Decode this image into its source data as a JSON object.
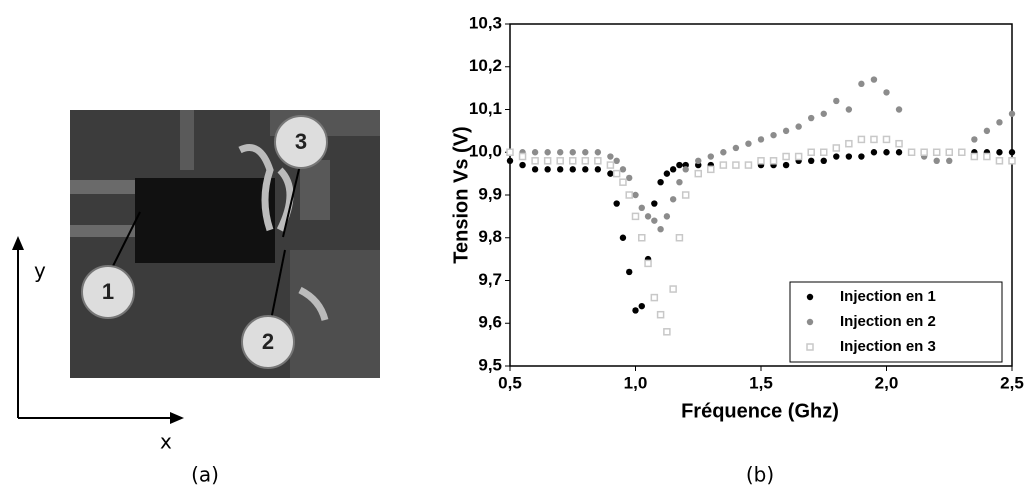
{
  "panel_a": {
    "callouts": [
      "1",
      "2",
      "3"
    ],
    "axis_x": "x",
    "axis_y": "y"
  },
  "captions": [
    "(a)",
    "(b)"
  ],
  "chart_data": {
    "type": "scatter",
    "x_label": "Fréquence (Ghz)",
    "y_label": "Tension Vs (V)",
    "x": [
      0.5,
      0.55,
      0.6,
      0.65,
      0.7,
      0.75,
      0.8,
      0.85,
      0.9,
      0.925,
      0.95,
      0.975,
      1.0,
      1.025,
      1.05,
      1.075,
      1.1,
      1.125,
      1.15,
      1.175,
      1.2,
      1.25,
      1.3,
      1.35,
      1.4,
      1.45,
      1.5,
      1.55,
      1.6,
      1.65,
      1.7,
      1.75,
      1.8,
      1.85,
      1.9,
      1.95,
      2.0,
      2.05,
      2.1,
      2.15,
      2.2,
      2.25,
      2.3,
      2.35,
      2.4,
      2.45,
      2.5
    ],
    "series": [
      {
        "name": "Injection en 1",
        "color": "#000000",
        "marker": "circle",
        "values": [
          9.98,
          9.97,
          9.96,
          9.96,
          9.96,
          9.96,
          9.96,
          9.96,
          9.95,
          9.88,
          9.8,
          9.72,
          9.63,
          9.64,
          9.75,
          9.88,
          9.93,
          9.95,
          9.96,
          9.97,
          9.97,
          9.97,
          9.97,
          9.97,
          9.97,
          9.97,
          9.97,
          9.97,
          9.97,
          9.98,
          9.98,
          9.98,
          9.99,
          9.99,
          9.99,
          10.0,
          10.0,
          10.0,
          10.0,
          10.0,
          10.0,
          10.0,
          10.0,
          10.0,
          10.0,
          10.0,
          10.0
        ]
      },
      {
        "name": "Injection en 2",
        "color": "#8c8c8c",
        "marker": "circle",
        "values": [
          10.0,
          10.0,
          10.0,
          10.0,
          10.0,
          10.0,
          10.0,
          10.0,
          9.99,
          9.98,
          9.96,
          9.94,
          9.9,
          9.87,
          9.85,
          9.84,
          9.82,
          9.85,
          9.89,
          9.93,
          9.96,
          9.98,
          9.99,
          10.0,
          10.01,
          10.02,
          10.03,
          10.04,
          10.05,
          10.06,
          10.08,
          10.09,
          10.12,
          10.1,
          10.16,
          10.17,
          10.14,
          10.1,
          10.0,
          9.99,
          9.98,
          9.98,
          10.0,
          10.03,
          10.05,
          10.07,
          10.09
        ]
      },
      {
        "name": "Injection en 3",
        "color": "#c8c8c8",
        "marker": "square",
        "values": [
          10.0,
          9.99,
          9.98,
          9.98,
          9.98,
          9.98,
          9.98,
          9.98,
          9.97,
          9.95,
          9.93,
          9.9,
          9.85,
          9.8,
          9.74,
          9.66,
          9.62,
          9.58,
          9.68,
          9.8,
          9.9,
          9.95,
          9.96,
          9.97,
          9.97,
          9.97,
          9.98,
          9.98,
          9.99,
          9.99,
          10.0,
          10.0,
          10.01,
          10.02,
          10.03,
          10.03,
          10.03,
          10.02,
          10.0,
          10.0,
          10.0,
          10.0,
          10.0,
          9.99,
          9.99,
          9.98,
          9.98
        ]
      }
    ],
    "xlim": [
      0.5,
      2.5
    ],
    "ylim": [
      9.5,
      10.3
    ],
    "xticks": [
      {
        "value": 0.5,
        "label": "0,5"
      },
      {
        "value": 1.0,
        "label": "1,0"
      },
      {
        "value": 1.5,
        "label": "1,5"
      },
      {
        "value": 2.0,
        "label": "2,0"
      },
      {
        "value": 2.5,
        "label": "2,5"
      }
    ],
    "yticks": [
      {
        "value": 9.5,
        "label": "9,5"
      },
      {
        "value": 9.6,
        "label": "9,6"
      },
      {
        "value": 9.7,
        "label": "9,7"
      },
      {
        "value": 9.8,
        "label": "9,8"
      },
      {
        "value": 9.9,
        "label": "9,9"
      },
      {
        "value": 10.0,
        "label": "10,0"
      },
      {
        "value": 10.1,
        "label": "10,1"
      },
      {
        "value": 10.2,
        "label": "10,2"
      },
      {
        "value": 10.3,
        "label": "10,3"
      }
    ],
    "grid": false,
    "legend": "lower right"
  }
}
